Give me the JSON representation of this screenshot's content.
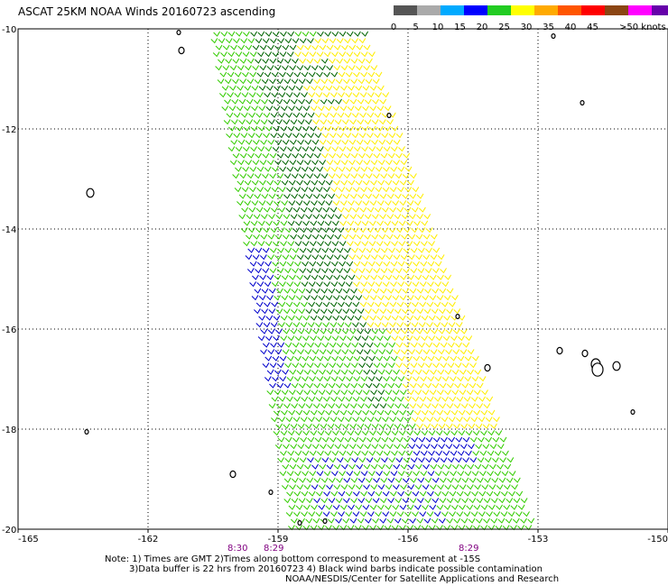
{
  "title": "ASCAT 25KM NOAA Winds 20160723 ascending",
  "legend": {
    "labels": [
      "0",
      "5",
      "10",
      "15",
      "20",
      "25",
      "30",
      "35",
      "40",
      "45",
      ">50 knots"
    ],
    "colors": [
      "#555555",
      "#aaaaaa",
      "#00aaff",
      "#0000ff",
      "#22cc22",
      "#ffff00",
      "#ffaa00",
      "#ff5500",
      "#ff0000",
      "#8b4513",
      "#ff00ff",
      "#6600aa"
    ]
  },
  "map": {
    "lon_ticks": [
      "-165",
      "-162",
      "-159",
      "-156",
      "-153",
      "-150"
    ],
    "lat_ticks": [
      "-10",
      "-12",
      "-14",
      "-16",
      "-18",
      "-20"
    ],
    "time_labels": [
      "8:30",
      "8:29",
      "8:29"
    ],
    "swath_colors": {
      "dark_green": "#006400",
      "green": "#33cc00",
      "yellow": "#ffee00",
      "blue": "#0000cc",
      "black": "#000000"
    }
  },
  "notes": [
    "Note: 1) Times are GMT 2)Times along bottom correspond to measurement at -15S",
    "3)Data buffer is 22 hrs from 20160723 4) Black wind barbs indicate possible contamination",
    "NOAA/NESDIS/Center for Satellite Applications and Research"
  ]
}
